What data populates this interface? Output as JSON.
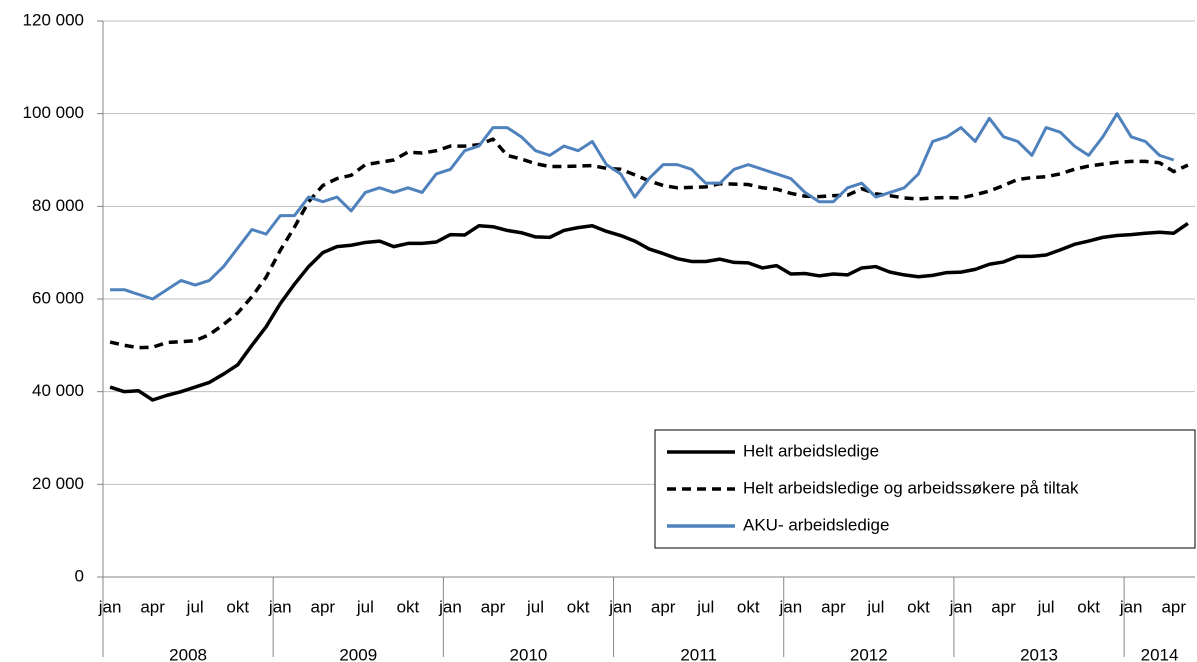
{
  "chart_data": {
    "type": "line",
    "categories": [
      "jan",
      null,
      null,
      "apr",
      null,
      null,
      "jul",
      null,
      null,
      "okt",
      null,
      null,
      "jan",
      null,
      null,
      "apr",
      null,
      null,
      "jul",
      null,
      null,
      "okt",
      null,
      null,
      "jan",
      null,
      null,
      "apr",
      null,
      null,
      "jul",
      null,
      null,
      "okt",
      null,
      null,
      "jan",
      null,
      null,
      "apr",
      null,
      null,
      "jul",
      null,
      null,
      "okt",
      null,
      null,
      "jan",
      null,
      null,
      "apr",
      null,
      null,
      "jul",
      null,
      null,
      "okt",
      null,
      null,
      "jan",
      null,
      null,
      "apr",
      null,
      null,
      "jul",
      null,
      null,
      "okt",
      null,
      null,
      "jan",
      null,
      null,
      "apr",
      null
    ],
    "years": [
      "2008",
      "2009",
      "2010",
      "2011",
      "2012",
      "2013",
      "2014"
    ],
    "series": [
      {
        "name": "Helt arbeidsledige",
        "color": "#000000",
        "dash": false,
        "values": [
          41000,
          40000,
          40200,
          38200,
          39200,
          40000,
          41000,
          42000,
          43800,
          45800,
          50000,
          54000,
          59000,
          63200,
          67000,
          70000,
          71300,
          71600,
          72200,
          72500,
          71300,
          72000,
          72000,
          72300,
          73900,
          73800,
          75800,
          75600,
          74800,
          74300,
          73400,
          73300,
          74800,
          75400,
          75800,
          74600,
          73700,
          72500,
          70800,
          69800,
          68700,
          68100,
          68100,
          68600,
          67900,
          67800,
          66700,
          67200,
          65400,
          65500,
          65000,
          65400,
          65200,
          66700,
          67000,
          65800,
          65200,
          64800,
          65100,
          65700,
          65800,
          66400,
          67500,
          68000,
          69200,
          69200,
          69500,
          70600,
          71800,
          72500,
          73300,
          73700,
          73900,
          74200,
          74400,
          74200,
          76300
        ]
      },
      {
        "name": "Helt arbeidsledige og arbeidssøkere på tiltak",
        "color": "#000000",
        "dash": true,
        "values": [
          50700,
          50000,
          49500,
          49600,
          50600,
          50800,
          51000,
          52300,
          54500,
          57000,
          60500,
          64700,
          70500,
          75500,
          81000,
          84500,
          86000,
          86700,
          89000,
          89500,
          90000,
          91700,
          91500,
          92000,
          93000,
          93000,
          93300,
          94500,
          91000,
          90200,
          89200,
          88600,
          88600,
          88700,
          88800,
          88200,
          88000,
          86800,
          85500,
          84500,
          84000,
          84100,
          84200,
          84900,
          84800,
          84700,
          84000,
          83700,
          82800,
          82200,
          82100,
          82300,
          82400,
          83800,
          82700,
          82300,
          81800,
          81600,
          81800,
          81900,
          81800,
          82500,
          83300,
          84500,
          85800,
          86200,
          86400,
          87000,
          88000,
          88700,
          89100,
          89500,
          89700,
          89700,
          89400,
          87500,
          88900
        ]
      },
      {
        "name": "AKU- arbeidsledige",
        "color": "#4f81bd",
        "dash": false,
        "values": [
          62000,
          62000,
          61000,
          60000,
          62000,
          64000,
          63000,
          64000,
          67000,
          71000,
          75000,
          74000,
          78000,
          78000,
          82000,
          81000,
          82000,
          79000,
          83000,
          84000,
          83000,
          84000,
          83000,
          87000,
          88000,
          92000,
          93000,
          97000,
          97000,
          95000,
          92000,
          91000,
          93000,
          92000,
          94000,
          89000,
          87000,
          82000,
          86000,
          89000,
          89000,
          88000,
          85000,
          85000,
          88000,
          89000,
          88000,
          87000,
          86000,
          83000,
          81000,
          81000,
          84000,
          85000,
          82000,
          83000,
          84000,
          87000,
          94000,
          95000,
          97000,
          94000,
          99000,
          95000,
          94000,
          91000,
          97000,
          96000,
          93000,
          91000,
          95000,
          100000,
          95000,
          94000,
          91000,
          90000,
          null
        ]
      }
    ],
    "ylim": [
      0,
      120000
    ],
    "yticks": [
      {
        "value": 0,
        "label": "0"
      },
      {
        "value": 20000,
        "label": "20 000"
      },
      {
        "value": 40000,
        "label": "40 000"
      },
      {
        "value": 60000,
        "label": "60 000"
      },
      {
        "value": 80000,
        "label": "80 000"
      },
      {
        "value": 100000,
        "label": "100 000"
      },
      {
        "value": 120000,
        "label": "120 000"
      }
    ],
    "grid": true,
    "legend": "bottom-right"
  }
}
